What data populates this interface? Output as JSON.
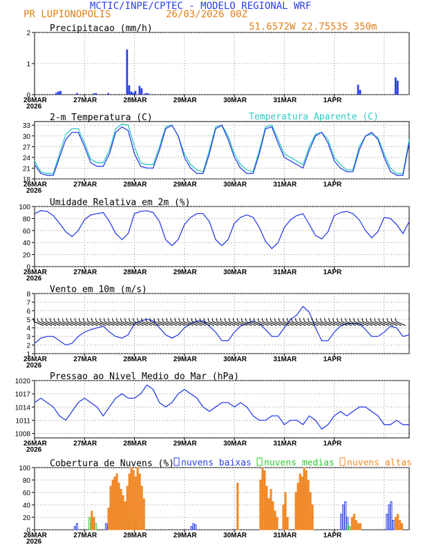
{
  "header": {
    "title": "MCTIC/INPE/CPTEC - MODELO REGIONAL WRF",
    "location": "PR LUPIONOPOLIS",
    "run": "26/03/2026 00Z",
    "coords": "51.6572W 22.7553S 350m"
  },
  "colors": {
    "blue": "#2a3ee6",
    "cyan": "#2ec8c0",
    "orange": "#f08a2a",
    "green": "#2ec82e",
    "title_blue": "#2a3ee6",
    "title_orange": "#e0801a"
  },
  "x_labels": [
    "26MAR",
    "27MAR",
    "28MAR",
    "29MAR",
    "30MAR",
    "31MAR",
    "1APR"
  ],
  "year_label": "2026",
  "chart_data": [
    {
      "id": "precip",
      "type": "bar",
      "title": "Precipitacao (mm/h)",
      "ylim": [
        0,
        2
      ],
      "yticks": [
        "0",
        "1",
        "2"
      ],
      "x_hours": [
        10,
        11,
        12,
        20,
        28,
        29,
        35,
        44,
        45,
        46,
        47,
        48,
        50,
        51,
        53,
        54,
        155,
        156,
        173,
        174
      ],
      "values": [
        0.06,
        0.1,
        0.12,
        0.05,
        0.04,
        0.05,
        0.05,
        1.45,
        0.3,
        0.1,
        0.06,
        0.12,
        0.28,
        0.2,
        0.05,
        0.04,
        0.32,
        0.15,
        0.55,
        0.45
      ]
    },
    {
      "id": "temp",
      "type": "line",
      "title": "2-m Temperatura (C)",
      "legend": "Temperatura Aparente (C)",
      "ylim": [
        18,
        34
      ],
      "yticks": [
        "18",
        "21",
        "24",
        "27",
        "30",
        "33"
      ],
      "x_hours": [
        0,
        3,
        6,
        9,
        12,
        15,
        18,
        21,
        24,
        27,
        30,
        33,
        36,
        39,
        42,
        45,
        48,
        51,
        54,
        57,
        60,
        63,
        66,
        69,
        72,
        75,
        78,
        81,
        84,
        87,
        90,
        93,
        96,
        99,
        102,
        105,
        108,
        111,
        114,
        117,
        120,
        123,
        126,
        129,
        132,
        135,
        138,
        141,
        144,
        147,
        150,
        153,
        156,
        159,
        162,
        165,
        168,
        171,
        174,
        177,
        180
      ],
      "series": [
        {
          "name": "2-m Temperatura",
          "values": [
            22,
            19.5,
            19,
            19,
            24,
            29,
            31,
            31,
            27,
            22.5,
            21.5,
            21.5,
            25,
            31,
            32.5,
            31.5,
            25,
            21.5,
            21,
            21,
            26,
            32,
            33,
            30,
            24,
            21,
            19.5,
            19.5,
            25,
            32,
            33,
            29,
            24,
            21,
            19.5,
            19.5,
            25,
            32,
            32.5,
            28,
            24,
            23,
            22,
            21,
            26,
            30,
            31,
            28,
            23,
            21,
            20,
            20,
            26,
            30,
            31,
            29,
            24,
            20,
            19,
            19,
            28
          ]
        },
        {
          "name": "Temperatura Aparente",
          "values": [
            23,
            20,
            19.5,
            19.5,
            25,
            30.5,
            32,
            32,
            28,
            23.5,
            22.5,
            22.5,
            26,
            32,
            33.3,
            33,
            27,
            22.5,
            22,
            22,
            27,
            32.5,
            33,
            30,
            25,
            22,
            20.5,
            20,
            26,
            32.5,
            33,
            30,
            25,
            22,
            20.5,
            20,
            26,
            32.5,
            33,
            29,
            25,
            24,
            23,
            22,
            27,
            30.5,
            31,
            29,
            24,
            22,
            20.5,
            20.5,
            27,
            30,
            30.5,
            29.5,
            25,
            21,
            19.5,
            19.5,
            29
          ]
        }
      ]
    },
    {
      "id": "rh",
      "type": "line",
      "title": "Umidade Relativa em 2m (%)",
      "ylim": [
        0,
        100
      ],
      "yticks": [
        "0",
        "20",
        "40",
        "60",
        "80",
        "100"
      ],
      "x_hours": [
        0,
        3,
        6,
        9,
        12,
        15,
        18,
        21,
        24,
        27,
        30,
        33,
        36,
        39,
        42,
        45,
        48,
        51,
        54,
        57,
        60,
        63,
        66,
        69,
        72,
        75,
        78,
        81,
        84,
        87,
        90,
        93,
        96,
        99,
        102,
        105,
        108,
        111,
        114,
        117,
        120,
        123,
        126,
        129,
        132,
        135,
        138,
        141,
        144,
        147,
        150,
        153,
        156,
        159,
        162,
        165,
        168,
        171,
        174,
        177,
        180
      ],
      "series": [
        {
          "name": "Umidade Relativa",
          "values": [
            88,
            93,
            92,
            85,
            72,
            58,
            50,
            60,
            78,
            86,
            88,
            90,
            75,
            55,
            45,
            55,
            88,
            92,
            93,
            90,
            75,
            45,
            35,
            45,
            70,
            82,
            88,
            88,
            75,
            45,
            35,
            45,
            72,
            82,
            86,
            82,
            65,
            42,
            30,
            40,
            65,
            78,
            85,
            88,
            70,
            52,
            46,
            58,
            85,
            90,
            92,
            88,
            78,
            60,
            48,
            58,
            82,
            80,
            70,
            55,
            75
          ]
        }
      ]
    },
    {
      "id": "wind",
      "type": "line",
      "title": "Vento em 10m (m/s)",
      "ylim": [
        1,
        8
      ],
      "yticks": [
        "1",
        "2",
        "3",
        "4",
        "5",
        "6",
        "7",
        "8"
      ],
      "x_hours": [
        0,
        3,
        6,
        9,
        12,
        15,
        18,
        21,
        24,
        27,
        30,
        33,
        36,
        39,
        42,
        45,
        48,
        51,
        54,
        57,
        60,
        63,
        66,
        69,
        72,
        75,
        78,
        81,
        84,
        87,
        90,
        93,
        96,
        99,
        102,
        105,
        108,
        111,
        114,
        117,
        120,
        123,
        126,
        129,
        132,
        135,
        138,
        141,
        144,
        147,
        150,
        153,
        156,
        159,
        162,
        165,
        168,
        171,
        174,
        177,
        180
      ],
      "series": [
        {
          "name": "Vento 10m",
          "values": [
            2.2,
            2.8,
            3,
            3,
            2.5,
            2,
            2.2,
            3,
            3.5,
            3.8,
            4,
            4.2,
            3.5,
            3,
            2.8,
            3.2,
            4.5,
            4.8,
            5,
            4.8,
            4,
            3.2,
            2.8,
            3.2,
            4,
            4.5,
            4.8,
            4.8,
            4.2,
            3.5,
            2.5,
            2.5,
            3.5,
            4.2,
            4.5,
            4.8,
            4.5,
            3.8,
            3,
            3,
            4,
            5,
            5.5,
            6.5,
            5.8,
            4,
            2.5,
            2.5,
            3.5,
            4.2,
            4.5,
            4.5,
            4.5,
            3.8,
            3,
            3,
            3.5,
            4.2,
            4,
            3,
            3.2
          ]
        }
      ]
    },
    {
      "id": "pres",
      "type": "line",
      "title": "Pressao ao Nivel Medio do Mar (hPa)",
      "ylim": [
        1007,
        1020
      ],
      "yticks": [
        "1008",
        "1011",
        "1014",
        "1017",
        "1020"
      ],
      "x_hours": [
        0,
        3,
        6,
        9,
        12,
        15,
        18,
        21,
        24,
        27,
        30,
        33,
        36,
        39,
        42,
        45,
        48,
        51,
        54,
        57,
        60,
        63,
        66,
        69,
        72,
        75,
        78,
        81,
        84,
        87,
        90,
        93,
        96,
        99,
        102,
        105,
        108,
        111,
        114,
        117,
        120,
        123,
        126,
        129,
        132,
        135,
        138,
        141,
        144,
        147,
        150,
        153,
        156,
        159,
        162,
        165,
        168,
        171,
        174,
        177,
        180
      ],
      "series": [
        {
          "name": "Pressao",
          "values": [
            1015,
            1016,
            1015,
            1014,
            1012,
            1011,
            1013,
            1015,
            1016,
            1015,
            1014,
            1012,
            1014,
            1016,
            1017,
            1016,
            1016,
            1017,
            1019,
            1018,
            1015,
            1014,
            1015,
            1017,
            1018,
            1017,
            1016,
            1014,
            1013,
            1014,
            1015,
            1015,
            1014,
            1015,
            1014,
            1012,
            1011,
            1011,
            1012,
            1012,
            1010,
            1011,
            1011,
            1010,
            1012,
            1011,
            1009,
            1010,
            1012,
            1013,
            1012,
            1013,
            1014,
            1014,
            1013,
            1012,
            1010,
            1010,
            1011,
            1010,
            1010
          ]
        }
      ]
    },
    {
      "id": "cloud",
      "type": "bar",
      "title": "Cobertura de Nuvens (%)",
      "legend": [
        "nuvens baixas",
        "nuvens medias",
        "nuvens altas"
      ],
      "ylim": [
        0,
        100
      ],
      "yticks": [
        "0",
        "20",
        "40",
        "60",
        "80",
        "100"
      ],
      "series": [
        {
          "name": "nuvens baixas",
          "x_hours": [
            19,
            20,
            34,
            35,
            36,
            37,
            38,
            39,
            40,
            41,
            42,
            43,
            44,
            75,
            76,
            77,
            147,
            148,
            149,
            150,
            169,
            170,
            171,
            172
          ],
          "values": [
            5,
            10,
            10,
            8,
            30,
            45,
            60,
            55,
            40,
            35,
            20,
            15,
            10,
            5,
            10,
            8,
            25,
            40,
            45,
            20,
            25,
            40,
            45,
            15
          ]
        },
        {
          "name": "nuvens medias",
          "x_hours": [
            26,
            27,
            29,
            44,
            45,
            46,
            48,
            49,
            150,
            151,
            156,
            176
          ],
          "values": [
            20,
            10,
            10,
            15,
            20,
            25,
            10,
            15,
            10,
            5,
            10,
            8
          ]
        },
        {
          "name": "nuvens altas",
          "x_hours": [
            27,
            28,
            35,
            36,
            37,
            38,
            39,
            40,
            41,
            42,
            43,
            44,
            45,
            46,
            47,
            48,
            49,
            50,
            51,
            52,
            97,
            108,
            109,
            110,
            111,
            112,
            113,
            114,
            115,
            116,
            119,
            120,
            121,
            125,
            126,
            127,
            128,
            129,
            130,
            131,
            132,
            133,
            152,
            153,
            154,
            155,
            156,
            173,
            174,
            175,
            176
          ],
          "values": [
            30,
            20,
            35,
            70,
            80,
            85,
            90,
            75,
            65,
            55,
            45,
            70,
            90,
            100,
            95,
            85,
            100,
            90,
            70,
            50,
            75,
            80,
            100,
            95,
            70,
            50,
            65,
            45,
            30,
            20,
            40,
            60,
            20,
            60,
            75,
            90,
            85,
            100,
            95,
            80,
            60,
            40,
            20,
            25,
            15,
            10,
            10,
            20,
            25,
            15,
            10
          ]
        }
      ]
    }
  ]
}
